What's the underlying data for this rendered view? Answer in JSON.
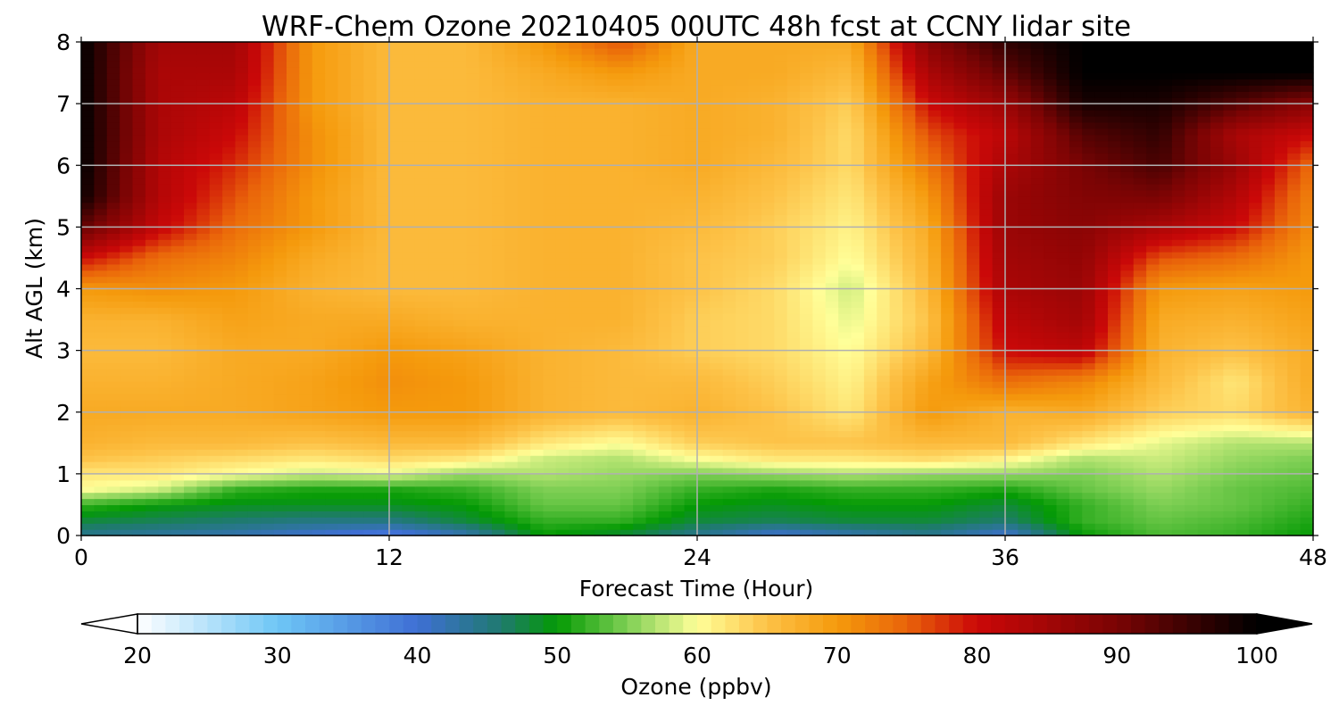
{
  "chart_data": {
    "type": "heatmap",
    "title": "WRF-Chem Ozone  20210405 00UTC 48h fcst at CCNY lidar site",
    "xlabel": "Forecast Time (Hour)",
    "ylabel": "Alt AGL (km)",
    "xlim": [
      0,
      48
    ],
    "ylim": [
      0,
      8
    ],
    "xticks": [
      0,
      12,
      24,
      36,
      48
    ],
    "yticks": [
      0,
      1,
      2,
      3,
      4,
      5,
      6,
      7,
      8
    ],
    "grid": true,
    "x_hours": [
      0,
      3,
      6,
      9,
      12,
      15,
      18,
      21,
      24,
      27,
      30,
      33,
      36,
      39,
      42,
      45,
      48
    ],
    "z_km": [
      0,
      0.25,
      0.5,
      0.75,
      1,
      1.25,
      1.5,
      2,
      2.5,
      3,
      3.5,
      4,
      4.5,
      5,
      5.5,
      6,
      6.5,
      7,
      7.5,
      8
    ],
    "ozone_ppbv": [
      [
        44,
        43,
        42,
        40,
        38,
        42,
        50,
        48,
        44,
        40,
        42,
        44,
        40,
        50,
        53,
        52,
        50
      ],
      [
        48,
        47,
        46,
        45,
        45,
        48,
        52,
        52,
        48,
        47,
        48,
        48,
        46,
        52,
        54,
        53,
        51
      ],
      [
        52,
        50,
        49,
        49,
        49,
        50,
        54,
        54,
        50,
        49,
        50,
        50,
        48,
        52,
        55,
        54,
        52
      ],
      [
        60,
        58,
        52,
        51,
        51,
        52,
        55,
        55,
        52,
        51,
        52,
        52,
        51,
        54,
        56,
        54,
        53
      ],
      [
        62,
        62,
        60,
        58,
        59,
        56,
        57,
        56,
        55,
        56,
        57,
        56,
        56,
        55,
        57,
        55,
        54
      ],
      [
        65,
        64,
        63,
        62,
        63,
        62,
        58,
        57,
        60,
        62,
        62,
        63,
        61,
        57,
        58,
        56,
        55
      ],
      [
        67,
        66,
        66,
        65,
        66,
        66,
        62,
        60,
        64,
        65,
        65,
        66,
        66,
        62,
        59,
        57,
        57
      ],
      [
        68,
        68,
        68,
        69,
        70,
        70,
        67,
        66,
        67,
        65,
        62,
        70,
        67,
        68,
        64,
        63,
        67
      ],
      [
        67,
        67,
        68,
        69,
        71,
        70,
        67,
        66,
        66,
        64,
        61,
        69,
        74,
        72,
        66,
        62,
        68
      ],
      [
        66,
        66,
        68,
        68,
        70,
        69,
        67,
        66,
        64,
        63,
        60,
        66,
        80,
        82,
        67,
        65,
        68
      ],
      [
        67,
        67,
        69,
        68,
        68,
        67,
        67,
        67,
        64,
        63,
        59,
        65,
        82,
        85,
        68,
        67,
        69
      ],
      [
        70,
        71,
        70,
        67,
        66,
        66,
        67,
        67,
        65,
        63,
        58,
        66,
        84,
        86,
        70,
        69,
        70
      ],
      [
        80,
        74,
        72,
        68,
        66,
        66,
        67,
        67,
        65,
        64,
        60,
        67,
        85,
        87,
        76,
        74,
        70
      ],
      [
        92,
        81,
        74,
        70,
        66,
        66,
        67,
        67,
        66,
        64,
        61,
        68,
        86,
        88,
        84,
        80,
        71
      ],
      [
        99,
        83,
        76,
        70,
        66,
        66,
        67,
        67,
        67,
        65,
        62,
        70,
        86,
        89,
        90,
        83,
        72
      ],
      [
        100,
        83,
        78,
        71,
        66,
        66,
        67,
        67,
        68,
        66,
        63,
        73,
        84,
        90,
        94,
        86,
        74
      ],
      [
        100,
        84,
        80,
        71,
        66,
        66,
        67,
        67,
        68,
        67,
        63,
        76,
        82,
        93,
        96,
        84,
        80
      ],
      [
        100,
        84,
        82,
        70,
        66,
        66,
        67,
        67,
        68,
        67,
        64,
        80,
        86,
        98,
        98,
        93,
        88
      ],
      [
        100,
        84,
        84,
        70,
        66,
        66,
        68,
        70,
        68,
        68,
        66,
        84,
        92,
        100,
        100,
        100,
        100
      ],
      [
        100,
        85,
        85,
        70,
        66,
        66,
        70,
        76,
        68,
        68,
        68,
        88,
        96,
        100,
        100,
        100,
        100
      ]
    ],
    "colorbar": {
      "label": "Ozone  (ppbv)",
      "min": 20,
      "max": 100,
      "ticks": [
        20,
        30,
        40,
        50,
        60,
        70,
        80,
        90,
        100
      ],
      "extend": "both",
      "stops": [
        {
          "v": 20,
          "c": "#ffffff"
        },
        {
          "v": 30,
          "c": "#6ec6f6"
        },
        {
          "v": 40,
          "c": "#3f6fd4"
        },
        {
          "v": 46,
          "c": "#1f7a6e"
        },
        {
          "v": 50,
          "c": "#049a04"
        },
        {
          "v": 55,
          "c": "#7ecf54"
        },
        {
          "v": 60,
          "c": "#ffff99"
        },
        {
          "v": 65,
          "c": "#fdc247"
        },
        {
          "v": 70,
          "c": "#f59a0c"
        },
        {
          "v": 75,
          "c": "#e9630a"
        },
        {
          "v": 80,
          "c": "#cb0808"
        },
        {
          "v": 90,
          "c": "#7a0404"
        },
        {
          "v": 100,
          "c": "#000000"
        }
      ]
    }
  }
}
